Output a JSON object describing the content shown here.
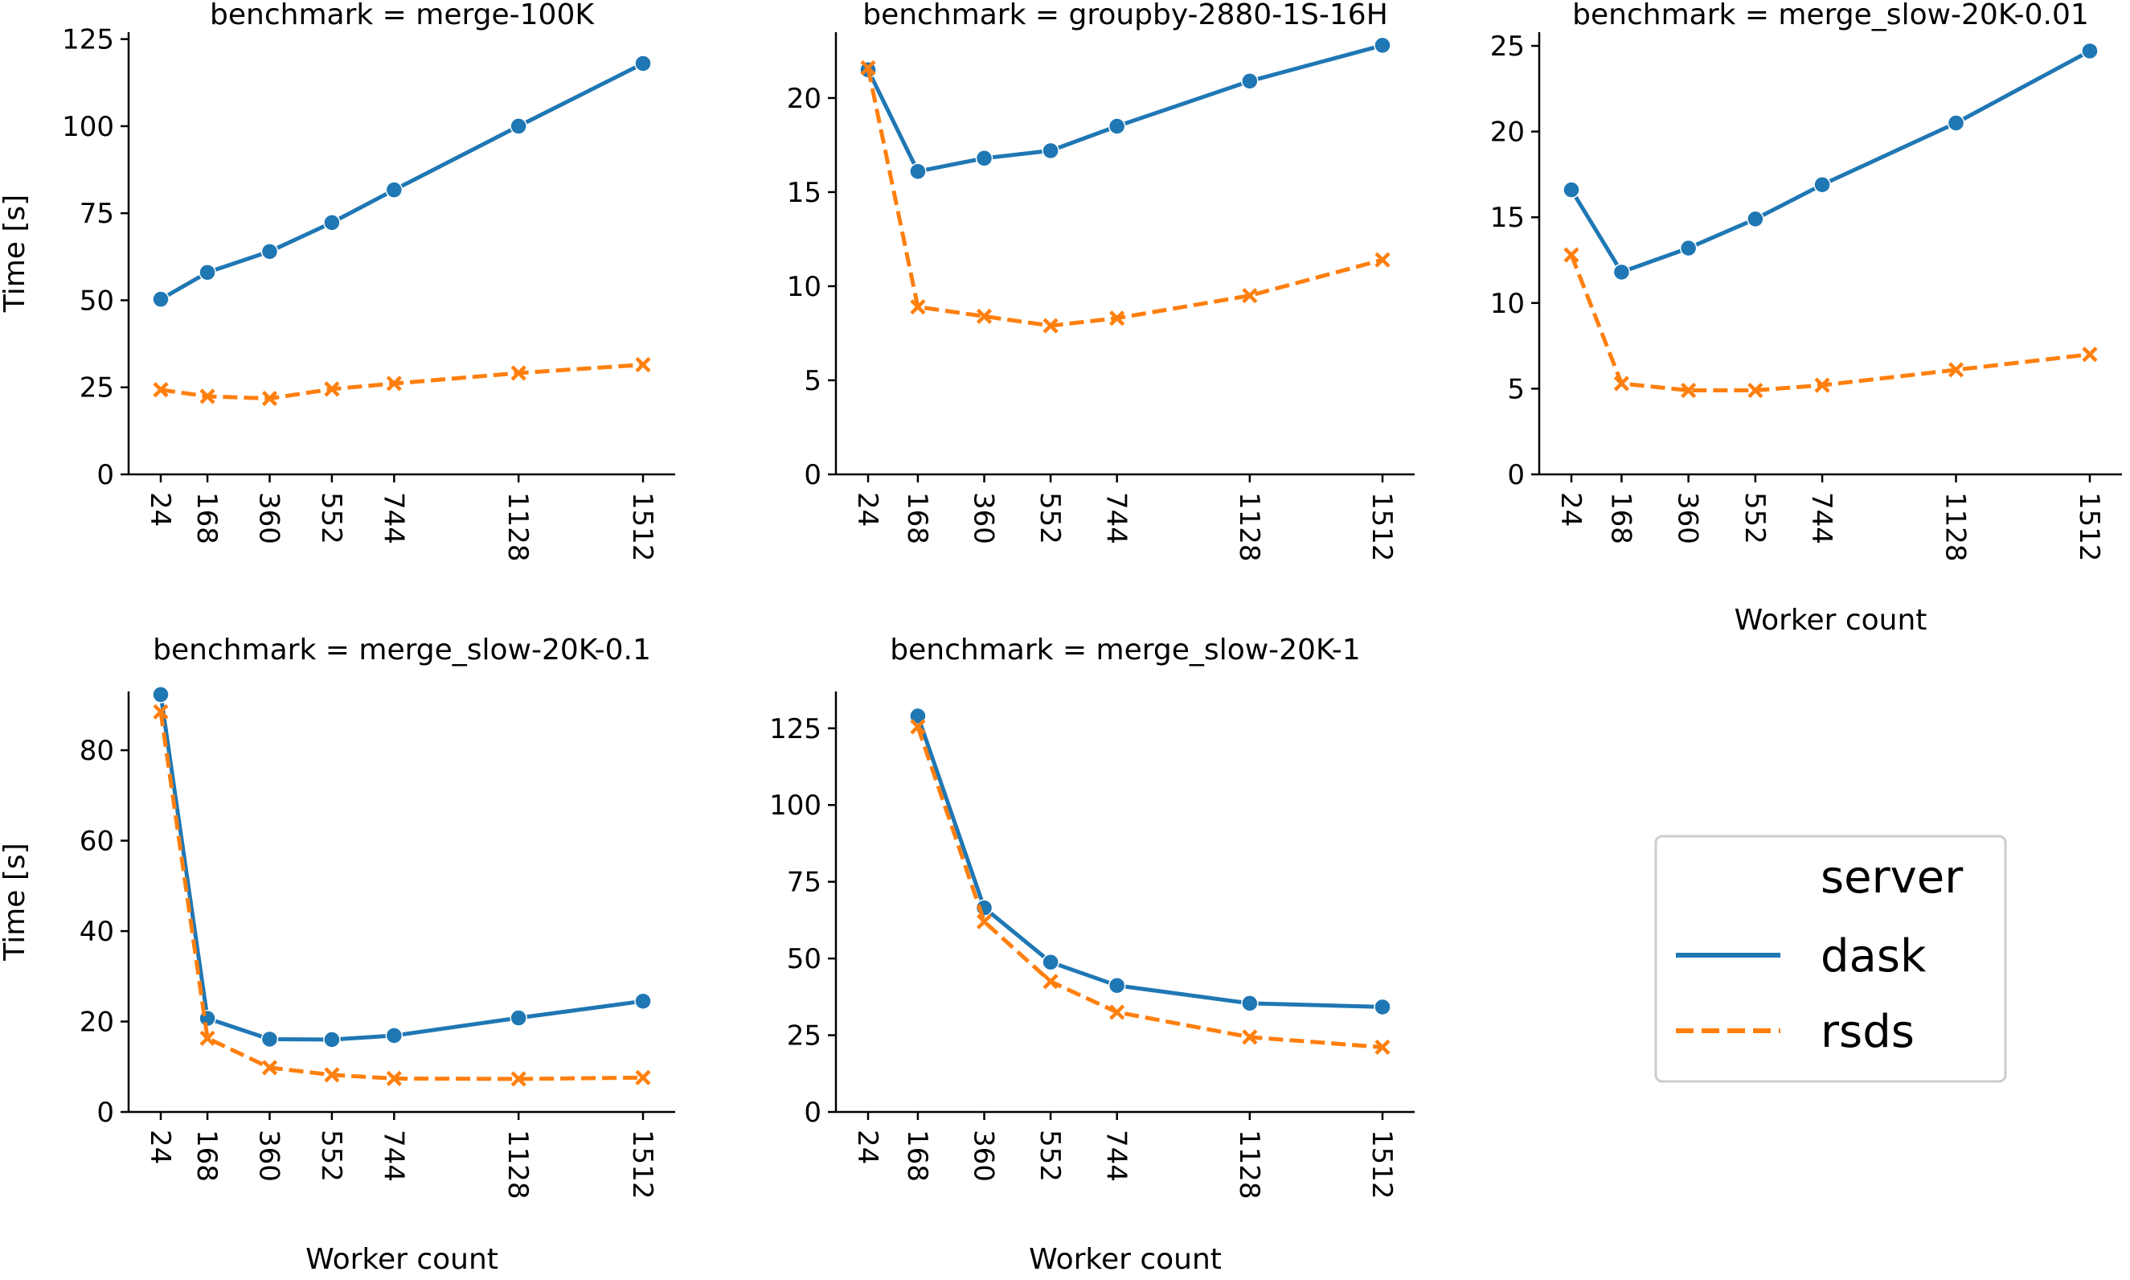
{
  "figure": {
    "x_label": "Worker count",
    "y_label": "Time [s]",
    "legend": {
      "title": "server",
      "placement": "lower-right",
      "entries": [
        {
          "label": "dask",
          "color": "#1f77b4",
          "style": "solid",
          "marker": "circle"
        },
        {
          "label": "rsds",
          "color": "#ff7f0e",
          "style": "dashed",
          "marker": "x"
        }
      ]
    }
  },
  "chart_data": [
    {
      "type": "line",
      "title": "benchmark = merge-100K",
      "ylabel": "Time [s]",
      "xlabel": "",
      "x": [
        24,
        168,
        360,
        552,
        744,
        1128,
        1512
      ],
      "x_ticks": [
        "24",
        "168",
        "360",
        "552",
        "744",
        "1128",
        "1512"
      ],
      "ylim": [
        0,
        127
      ],
      "y_ticks": [
        0,
        25,
        50,
        75,
        100,
        125
      ],
      "series": [
        {
          "name": "dask",
          "values": [
            50.3,
            58.0,
            64.0,
            72.3,
            81.7,
            100.0,
            118.0
          ]
        },
        {
          "name": "rsds",
          "values": [
            24.3,
            22.4,
            21.8,
            24.5,
            26.1,
            29.1,
            31.5
          ]
        }
      ]
    },
    {
      "type": "line",
      "title": "benchmark = groupby-2880-1S-16H",
      "ylabel": "",
      "xlabel": "",
      "x": [
        24,
        168,
        360,
        552,
        744,
        1128,
        1512
      ],
      "x_ticks": [
        "24",
        "168",
        "360",
        "552",
        "744",
        "1128",
        "1512"
      ],
      "ylim": [
        0,
        23.5
      ],
      "y_ticks": [
        0,
        5,
        10,
        15,
        20
      ],
      "series": [
        {
          "name": "dask",
          "values": [
            21.5,
            16.1,
            16.8,
            17.2,
            18.5,
            20.9,
            22.8
          ]
        },
        {
          "name": "rsds",
          "values": [
            21.6,
            8.9,
            8.4,
            7.9,
            8.3,
            9.5,
            11.4
          ]
        }
      ]
    },
    {
      "type": "line",
      "title": "benchmark = merge_slow-20K-0.01",
      "ylabel": "",
      "xlabel": "Worker count",
      "x": [
        24,
        168,
        360,
        552,
        744,
        1128,
        1512
      ],
      "x_ticks": [
        "24",
        "168",
        "360",
        "552",
        "744",
        "1128",
        "1512"
      ],
      "ylim": [
        0,
        25.8
      ],
      "y_ticks": [
        0,
        5,
        10,
        15,
        20,
        25
      ],
      "series": [
        {
          "name": "dask",
          "values": [
            16.6,
            11.8,
            13.2,
            14.9,
            16.9,
            20.5,
            24.7
          ]
        },
        {
          "name": "rsds",
          "values": [
            12.8,
            5.3,
            4.9,
            4.9,
            5.2,
            6.1,
            7.0
          ]
        }
      ]
    },
    {
      "type": "line",
      "title": "benchmark = merge_slow-20K-0.1",
      "ylabel": "Time [s]",
      "xlabel": "Worker count",
      "x": [
        24,
        168,
        360,
        552,
        744,
        1128,
        1512
      ],
      "x_ticks": [
        "24",
        "168",
        "360",
        "552",
        "744",
        "1128",
        "1512"
      ],
      "ylim": [
        0,
        93
      ],
      "y_ticks": [
        0,
        20,
        40,
        60,
        80
      ],
      "series": [
        {
          "name": "dask",
          "values": [
            92.3,
            20.7,
            16.1,
            16.0,
            16.9,
            20.8,
            24.5
          ]
        },
        {
          "name": "rsds",
          "values": [
            88.5,
            16.3,
            9.8,
            8.2,
            7.4,
            7.3,
            7.6
          ]
        }
      ]
    },
    {
      "type": "line",
      "title": "benchmark = merge_slow-20K-1",
      "ylabel": "",
      "xlabel": "Worker count",
      "x": [
        24,
        168,
        360,
        552,
        744,
        1128,
        1512
      ],
      "x_ticks": [
        "24",
        "168",
        "360",
        "552",
        "744",
        "1128",
        "1512"
      ],
      "x_start_index": 1,
      "ylim": [
        0,
        137
      ],
      "y_ticks": [
        0,
        25,
        50,
        75,
        100,
        125
      ],
      "series": [
        {
          "name": "dask",
          "values": [
            null,
            129.0,
            66.5,
            48.8,
            41.2,
            35.4,
            34.2
          ]
        },
        {
          "name": "rsds",
          "values": [
            null,
            125.5,
            62.0,
            42.5,
            32.5,
            24.4,
            21.1
          ]
        }
      ]
    }
  ]
}
